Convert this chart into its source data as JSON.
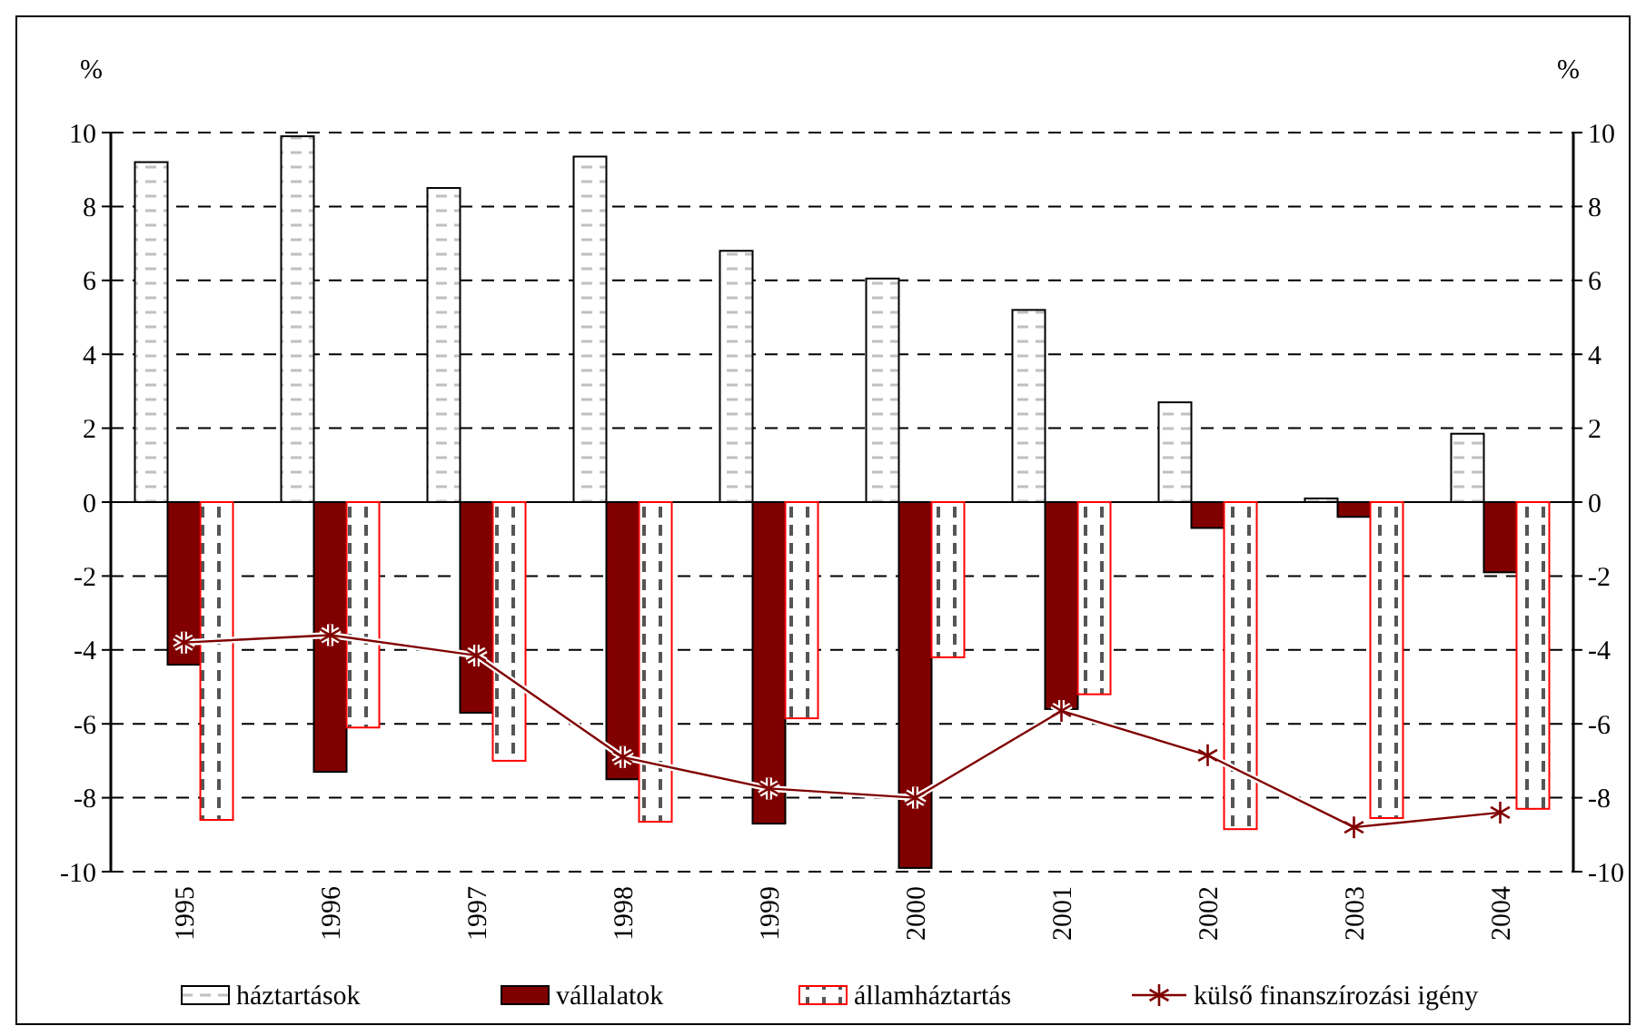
{
  "chart_data": {
    "type": "bar",
    "ylabel": "%",
    "y2label": "%",
    "categories": [
      "1995",
      "1996",
      "1997",
      "1998",
      "1999",
      "2000",
      "2001",
      "2002",
      "2003",
      "2004"
    ],
    "series": [
      {
        "name": "háztartások",
        "color": "#000000",
        "values": [
          9.2,
          9.9,
          8.5,
          9.35,
          6.8,
          6.05,
          5.2,
          2.7,
          0.1,
          1.85
        ]
      },
      {
        "name": "vállalatok",
        "color": "#800000",
        "values": [
          -4.4,
          -7.3,
          -5.7,
          -7.5,
          -8.7,
          -9.9,
          -5.6,
          -0.7,
          -0.4,
          -1.9
        ]
      },
      {
        "name": "államháztartás",
        "color": "#ff0000",
        "values": [
          -8.6,
          -6.1,
          -7.0,
          -8.65,
          -5.85,
          -4.2,
          -5.2,
          -8.85,
          -8.55,
          -8.3
        ]
      },
      {
        "name": "külső finanszírozási igény",
        "type": "line",
        "color": "#800000",
        "marker": "cross",
        "values": [
          -3.8,
          -3.6,
          -4.15,
          -6.9,
          -7.75,
          -8.0,
          -5.65,
          -6.85,
          -8.8,
          -8.4
        ]
      }
    ],
    "ylim": [
      -10,
      10
    ],
    "yticks": [
      -10,
      -8,
      -6,
      -4,
      -2,
      0,
      2,
      4,
      6,
      8,
      10
    ],
    "y2lim": [
      -10,
      10
    ],
    "y2ticks": [
      -10,
      -8,
      -6,
      -4,
      -2,
      0,
      2,
      4,
      6,
      8,
      10
    ],
    "grid": "y",
    "legend": "bottom"
  }
}
